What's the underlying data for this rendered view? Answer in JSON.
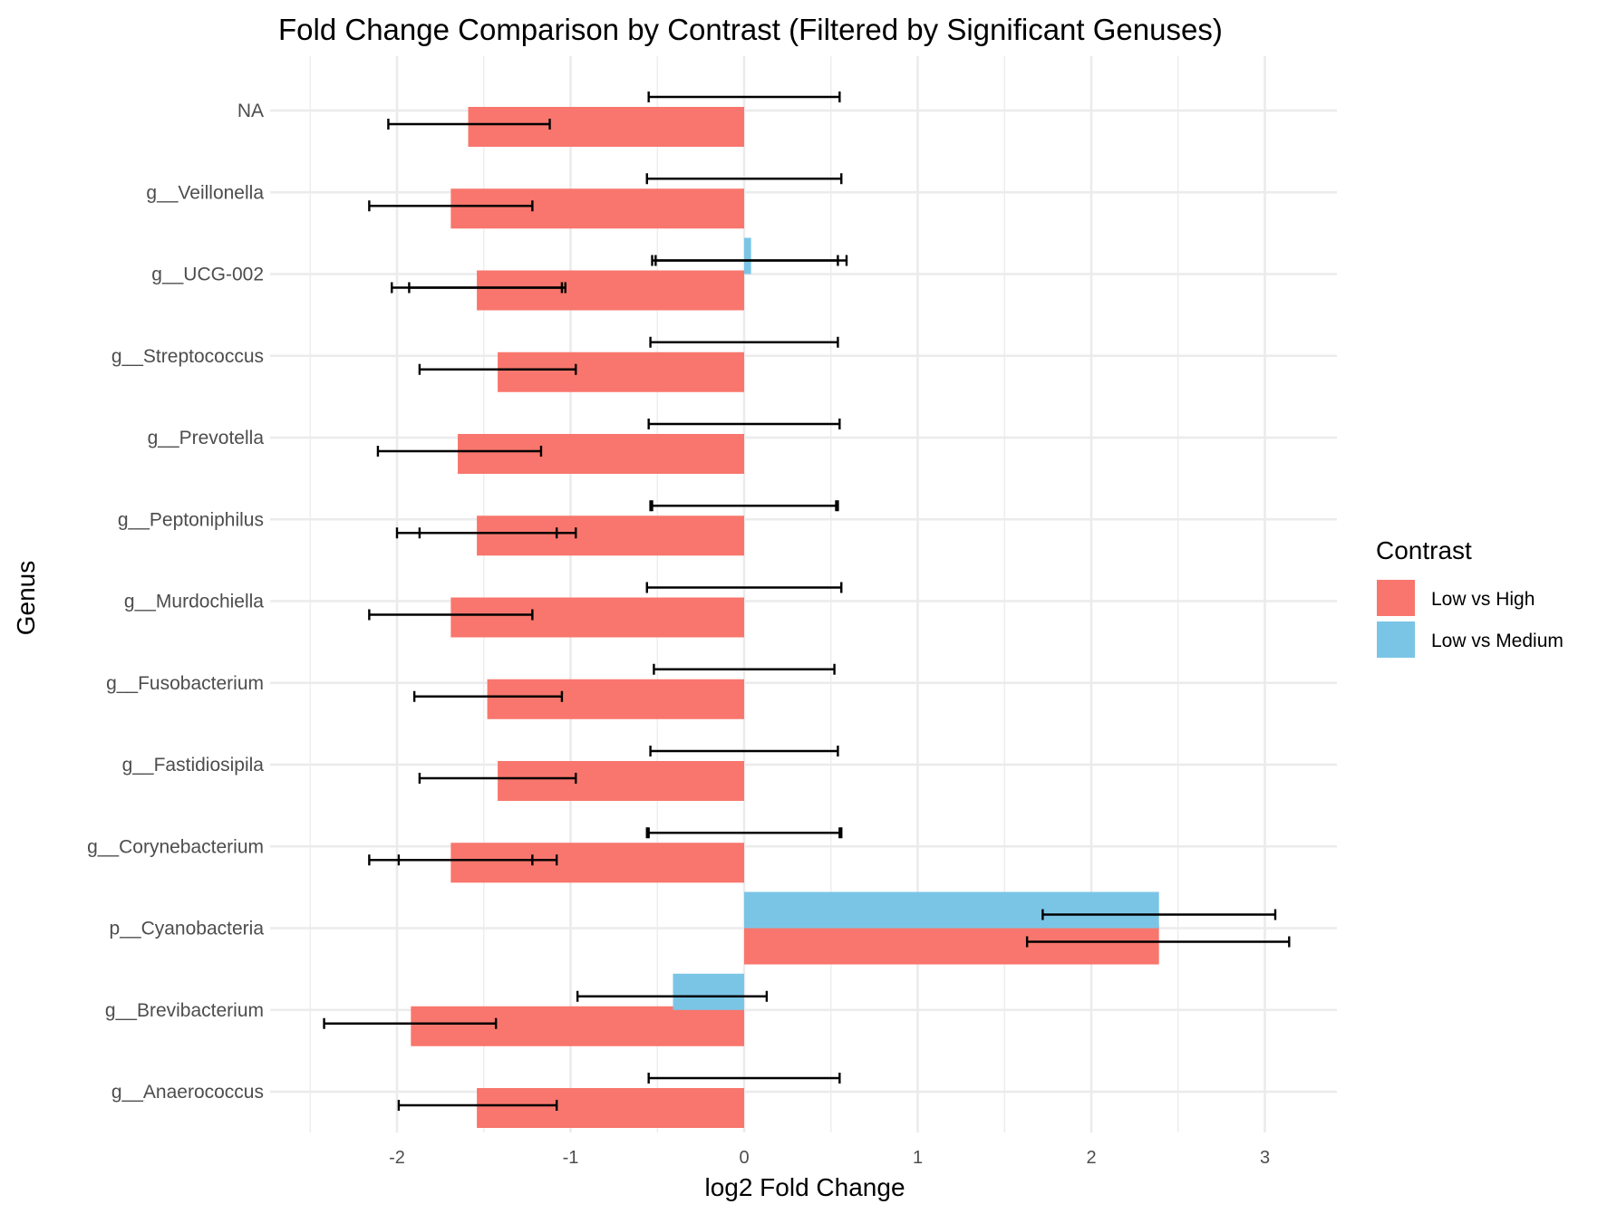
{
  "chart_data": {
    "type": "bar",
    "orientation": "horizontal",
    "title": "Fold Change Comparison by Contrast (Filtered by Significant Genuses)",
    "xlabel": "log2 Fold Change",
    "ylabel": "Genus",
    "xlim": [
      -2.55,
      3.4
    ],
    "xticks": [
      -2,
      -1,
      0,
      1,
      2,
      3
    ],
    "xtick_labels": [
      "-2",
      "-1",
      "0",
      "1",
      "2",
      "3"
    ],
    "grid": true,
    "legend": {
      "title": "Contrast",
      "position": "right"
    },
    "categories": [
      "NA",
      "g__Veillonella",
      "g__UCG-002",
      "g__Streptococcus",
      "g__Prevotella",
      "g__Peptoniphilus",
      "g__Murdochiella",
      "g__Fusobacterium",
      "g__Fastidiosipila",
      "g__Corynebacterium",
      "p__Cyanobacteria",
      "g__Brevibacterium",
      "g__Anaerococcus"
    ],
    "series": [
      {
        "name": "Low vs High",
        "color": "#F8766D",
        "values": [
          -1.59,
          -1.69,
          -1.54,
          -1.42,
          -1.65,
          -1.54,
          -1.69,
          -1.48,
          -1.42,
          -1.69,
          2.39,
          -1.92,
          -1.54
        ],
        "error_bars": [
          [
            [
              -2.05,
              -1.12
            ]
          ],
          [
            [
              -2.16,
              -1.22
            ]
          ],
          [
            [
              -2.03,
              -1.05
            ],
            [
              -1.93,
              -1.03
            ]
          ],
          [
            [
              -1.87,
              -0.97
            ]
          ],
          [
            [
              -2.11,
              -1.17
            ]
          ],
          [
            [
              -2.0,
              -1.08
            ],
            [
              -1.87,
              -0.97
            ]
          ],
          [
            [
              -2.16,
              -1.22
            ]
          ],
          [
            [
              -1.9,
              -1.05
            ]
          ],
          [
            [
              -1.87,
              -0.97
            ]
          ],
          [
            [
              -2.16,
              -1.22
            ],
            [
              -1.99,
              -1.08
            ]
          ],
          [
            [
              1.63,
              3.14
            ]
          ],
          [
            [
              -2.42,
              -1.43
            ]
          ],
          [
            [
              -1.99,
              -1.08
            ]
          ]
        ]
      },
      {
        "name": "Low vs Medium",
        "color": "#7AC5E6",
        "values": [
          0,
          0,
          0.04,
          0,
          0,
          0,
          0,
          0,
          0,
          0,
          2.39,
          -0.41,
          0
        ],
        "error_bars": [
          [
            [
              -0.55,
              0.55
            ]
          ],
          [
            [
              -0.56,
              0.56
            ]
          ],
          [
            [
              -0.53,
              0.54
            ],
            [
              -0.51,
              0.59
            ]
          ],
          [
            [
              -0.54,
              0.54
            ]
          ],
          [
            [
              -0.55,
              0.55
            ]
          ],
          [
            [
              -0.54,
              0.53
            ],
            [
              -0.53,
              0.54
            ]
          ],
          [
            [
              -0.56,
              0.56
            ]
          ],
          [
            [
              -0.52,
              0.52
            ]
          ],
          [
            [
              -0.54,
              0.54
            ]
          ],
          [
            [
              -0.56,
              0.55
            ],
            [
              -0.55,
              0.56
            ]
          ],
          [
            [
              1.72,
              3.06
            ]
          ],
          [
            [
              -0.96,
              0.13
            ]
          ],
          [
            [
              -0.55,
              0.55
            ]
          ]
        ]
      }
    ]
  }
}
